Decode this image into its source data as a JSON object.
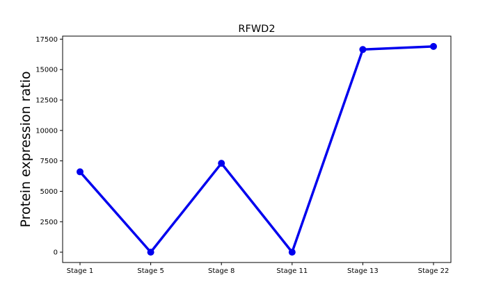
{
  "chart_data": {
    "type": "line",
    "title": "RFWD2",
    "xlabel": "",
    "ylabel": "Protein expression ratio",
    "categories": [
      "Stage 1",
      "Stage 5",
      "Stage 8",
      "Stage 11",
      "Stage 13",
      "Stage 22"
    ],
    "series": [
      {
        "values": [
          6600,
          0,
          7300,
          0,
          16650,
          16900
        ],
        "color": "#0000ee"
      }
    ],
    "yticks": [
      0,
      2500,
      5000,
      7500,
      10000,
      12500,
      15000,
      17500
    ],
    "ytick_labels": [
      "0",
      "2500",
      "5000",
      "7500",
      "10000",
      "12500",
      "15000",
      "17500"
    ],
    "ylim": [
      -850,
      17750
    ],
    "grid": false,
    "legend": "none",
    "marker": "circle"
  }
}
